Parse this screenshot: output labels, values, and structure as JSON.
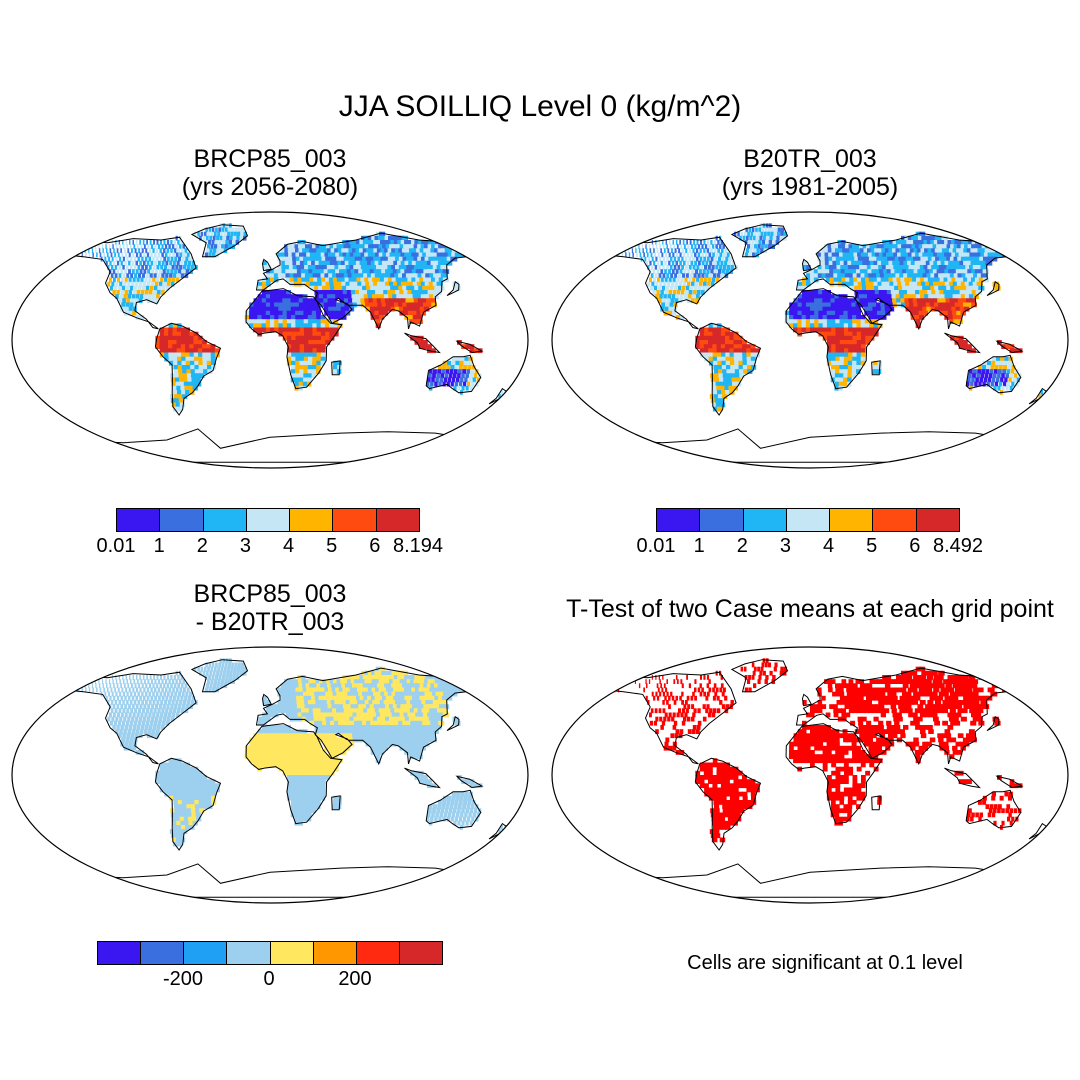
{
  "main_title": "JJA SOILLIQ Level 0 (kg/m^2)",
  "panels": [
    {
      "title_line1": "BRCP85_003",
      "title_line2": "(yrs 2056-2080)",
      "palette": "abs"
    },
    {
      "title_line1": "B20TR_003",
      "title_line2": "(yrs 1981-2005)",
      "palette": "abs"
    },
    {
      "title_line1": "BRCP85_003",
      "title_line2": "- B20TR_003",
      "palette": "diff"
    },
    {
      "title_line1": "T-Test of two Case means at each grid point",
      "title_line2": "",
      "palette": "sig"
    }
  ],
  "colorbars": [
    {
      "colors": [
        "#3a16f0",
        "#3a6fe0",
        "#20b5f5",
        "#c5e6f5",
        "#ffb400",
        "#ff4a10",
        "#d62828"
      ],
      "labels": [
        "0.01",
        "1",
        "2",
        "3",
        "4",
        "5",
        "6",
        "8.194"
      ]
    },
    {
      "colors": [
        "#3a16f0",
        "#3a6fe0",
        "#20b5f5",
        "#c5e6f5",
        "#ffb400",
        "#ff4a10",
        "#d62828"
      ],
      "labels": [
        "0.01",
        "1",
        "2",
        "3",
        "4",
        "5",
        "6",
        "8.492"
      ]
    },
    {
      "colors": [
        "#3a16f0",
        "#3a6fe0",
        "#20a0f5",
        "#9dd0ee",
        "#ffe860",
        "#ff9800",
        "#ff2a10",
        "#d62828"
      ],
      "labels": [
        "-200",
        "0",
        "200"
      ]
    }
  ],
  "significance_note": "Cells are significant at 0.1 level",
  "significance_color": "#ff0000"
}
